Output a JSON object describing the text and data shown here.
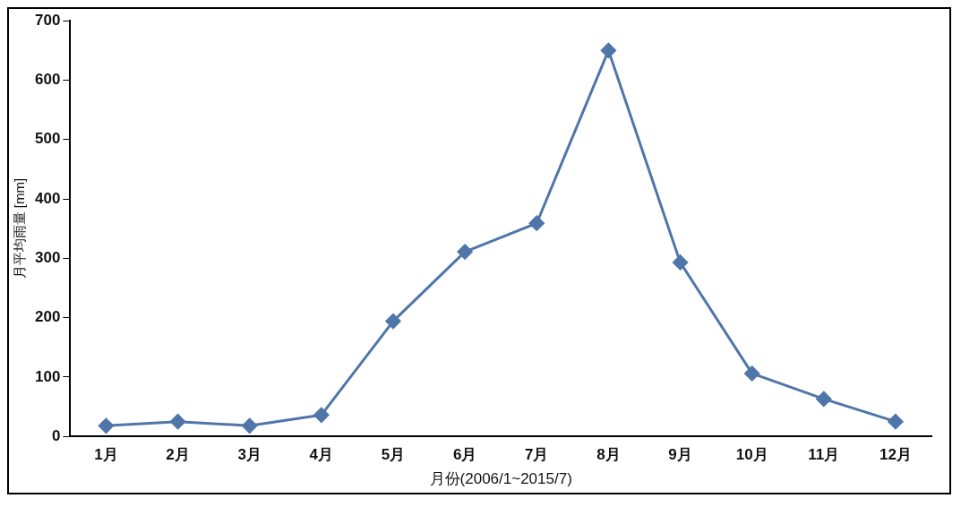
{
  "chart_data": {
    "type": "line",
    "xlabel": "月份(2006/1~2015/7)",
    "ylabel": "月平均雨量 [mm]",
    "categories": [
      "1月",
      "2月",
      "3月",
      "4月",
      "5月",
      "6月",
      "7月",
      "8月",
      "9月",
      "10月",
      "11月",
      "12月"
    ],
    "series": [
      {
        "color": "#4f76a9",
        "values": [
          18,
          25,
          18,
          36,
          194,
          311,
          359,
          650,
          293,
          106,
          63,
          25
        ]
      }
    ],
    "ylim": [
      0,
      700
    ],
    "yticks": [
      0,
      100,
      200,
      300,
      400,
      500,
      600,
      700
    ],
    "grid": false,
    "legend": false,
    "marker": "diamond",
    "line_style": "solid"
  }
}
